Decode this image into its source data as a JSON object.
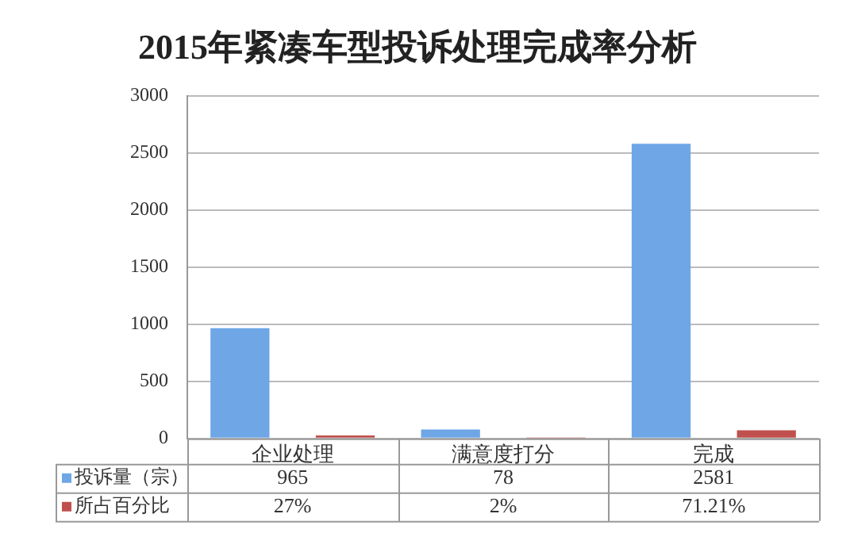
{
  "chart_data": {
    "type": "bar",
    "title": "2015年紧凑车型投诉处理完成率分析",
    "categories": [
      "企业处理",
      "满意度打分",
      "完成"
    ],
    "series": [
      {
        "name": "投诉量（宗）",
        "color": "#6ea6e6",
        "values": [
          965,
          78,
          2581
        ],
        "value_labels": [
          "965",
          "78",
          "2581"
        ]
      },
      {
        "name": "所占百分比",
        "color": "#c0504d",
        "values": [
          27,
          2,
          71.21
        ],
        "value_labels": [
          "27%",
          "2%",
          "71.21%"
        ]
      }
    ],
    "ylim": [
      0,
      3000
    ],
    "yticks": [
      0,
      500,
      1000,
      1500,
      2000,
      2500,
      3000
    ],
    "grid": "y",
    "legend": "bottom left"
  }
}
